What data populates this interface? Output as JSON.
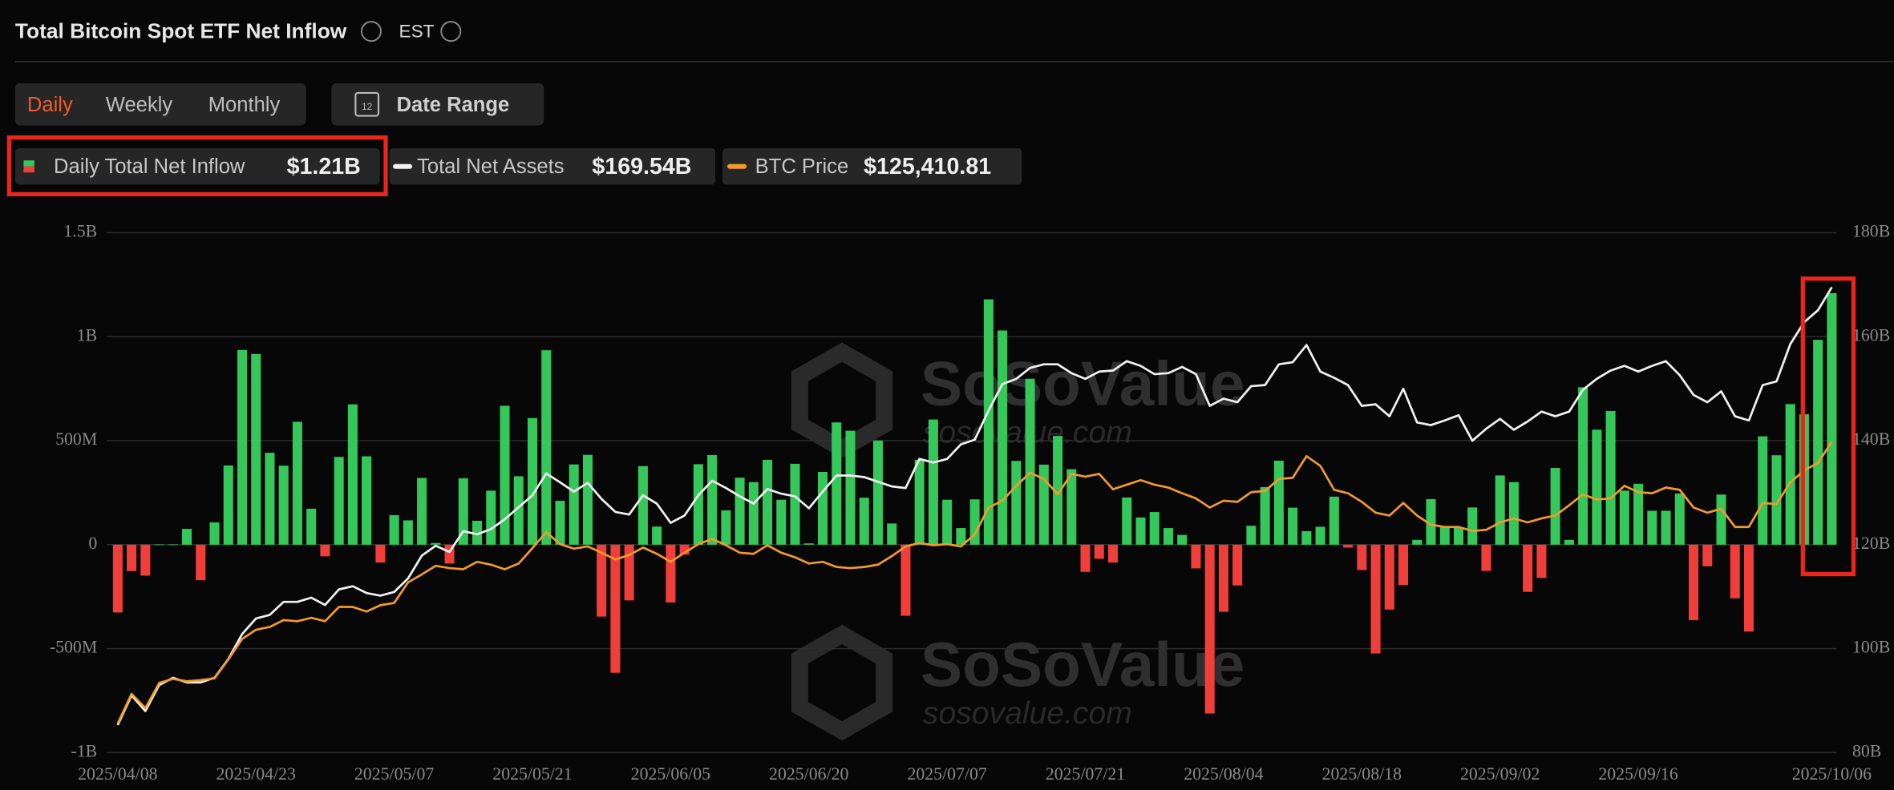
{
  "header": {
    "title": "Total Bitcoin Spot ETF Net Inflow",
    "timezone": "EST"
  },
  "controls": {
    "tabs": [
      "Daily",
      "Weekly",
      "Monthly"
    ],
    "date_range": "Date Range",
    "date_icon": "12"
  },
  "watermark": {
    "name": "SoSoValue",
    "url": "sosovalue.com"
  },
  "chart_data": {
    "type": "bar",
    "categories": [
      "2025/04/08",
      null,
      null,
      null,
      null,
      null,
      null,
      null,
      null,
      null,
      "2025/04/23",
      null,
      null,
      null,
      null,
      null,
      null,
      null,
      null,
      null,
      "2025/05/07",
      null,
      null,
      null,
      null,
      null,
      null,
      null,
      null,
      null,
      "2025/05/21",
      null,
      null,
      null,
      null,
      null,
      null,
      null,
      null,
      null,
      "2025/06/05",
      null,
      null,
      null,
      null,
      null,
      null,
      null,
      null,
      null,
      "2025/06/20",
      null,
      null,
      null,
      null,
      null,
      null,
      null,
      null,
      null,
      "2025/07/07",
      null,
      null,
      null,
      null,
      null,
      null,
      null,
      null,
      null,
      "2025/07/21",
      null,
      null,
      null,
      null,
      null,
      null,
      null,
      null,
      null,
      "2025/08/04",
      null,
      null,
      null,
      null,
      null,
      null,
      null,
      null,
      null,
      "2025/08/18",
      null,
      null,
      null,
      null,
      null,
      null,
      null,
      null,
      null,
      "2025/09/02",
      null,
      null,
      null,
      null,
      null,
      null,
      null,
      null,
      null,
      "2025/09/16",
      null,
      null,
      null,
      null,
      null,
      null,
      null,
      null,
      null,
      null,
      null,
      null,
      null,
      "2025/10/06"
    ],
    "series": [
      {
        "name": "Daily Total Net Inflow",
        "latest_label": "$1.21B",
        "type": "bar",
        "color": "#35c759",
        "negative_color": "#f03e3a",
        "values": [
          -326,
          -127,
          -149,
          1,
          1,
          76,
          -171,
          107,
          381,
          936,
          917,
          442,
          380,
          591,
          173,
          -56,
          422,
          675,
          425,
          -86,
          142,
          117,
          321,
          8,
          -91,
          319,
          115,
          260,
          668,
          329,
          609,
          935,
          211,
          386,
          432,
          -346,
          -616,
          -268,
          378,
          87,
          -278,
          -48,
          387,
          431,
          165,
          322,
          301,
          408,
          216,
          389,
          6,
          350,
          588,
          548,
          226,
          501,
          102,
          -342,
          408,
          602,
          216,
          80,
          218,
          1180,
          1030,
          403,
          798,
          385,
          523,
          363,
          -131,
          -68,
          -86,
          227,
          131,
          157,
          80,
          47,
          -114,
          -812,
          -323,
          -196,
          91,
          277,
          404,
          178,
          65,
          86,
          231,
          -14,
          -122,
          -523,
          -312,
          -194,
          23,
          219,
          88,
          81,
          179,
          -126,
          333,
          301,
          -227,
          -160,
          369,
          23,
          757,
          553,
          643,
          260,
          293,
          163,
          163,
          246,
          -363,
          -104,
          241,
          -258,
          -418,
          521,
          430,
          676,
          627,
          985,
          1210
        ]
      },
      {
        "name": "Total Net Assets",
        "latest_label": "$169.54B",
        "type": "line",
        "axis": "y2",
        "color": "#f2f2f2",
        "values": [
          85.3,
          91,
          88,
          93,
          94.4,
          93.5,
          93.5,
          94.4,
          98,
          102.8,
          105.8,
          106.5,
          109,
          109,
          109.8,
          108.4,
          111.4,
          112,
          110.7,
          110.2,
          110.9,
          113.5,
          117.9,
          119.8,
          118.6,
          122.6,
          122,
          123,
          124.9,
          127.2,
          129.5,
          133.7,
          132,
          130.2,
          131.9,
          128.8,
          126.3,
          125.8,
          129.5,
          127.9,
          124.2,
          125.6,
          129.5,
          132.3,
          130.9,
          129.3,
          127.9,
          130.7,
          129.8,
          129.3,
          127,
          130.2,
          133.3,
          133.3,
          133,
          132.1,
          131.2,
          130.9,
          136.5,
          135.8,
          136.5,
          139.3,
          140.2,
          145.8,
          150.9,
          151.9,
          154,
          154.7,
          154.7,
          153,
          151.9,
          153.3,
          153.5,
          155.3,
          154.4,
          152.8,
          153,
          154.2,
          152.8,
          146.7,
          148.1,
          147.4,
          150.5,
          150.7,
          154.7,
          155.1,
          158.4,
          153.3,
          152.1,
          150.7,
          146.7,
          147,
          144.7,
          150,
          143.5,
          143,
          143.9,
          144.9,
          140,
          142.3,
          144.2,
          142.1,
          143.7,
          145.6,
          144.7,
          145.6,
          149.8,
          151.9,
          153.5,
          154.4,
          153.3,
          154.4,
          155.3,
          152.6,
          148.8,
          147.4,
          149.5,
          144.7,
          143.9,
          150.7,
          151.4,
          158.6,
          162.8,
          165.1,
          169.54
        ]
      },
      {
        "name": "BTC Price",
        "latest_label": "$125,410.81",
        "type": "line",
        "axis": "y3",
        "color": "#f39a2c",
        "values": [
          76100,
          81300,
          78800,
          83200,
          83900,
          83500,
          83700,
          84000,
          87300,
          90900,
          92500,
          93000,
          94200,
          94000,
          94600,
          94000,
          96500,
          96500,
          95700,
          96800,
          97200,
          100800,
          102200,
          103700,
          103300,
          103100,
          104400,
          103900,
          103100,
          104100,
          106800,
          109600,
          107500,
          106700,
          107100,
          106000,
          104800,
          105600,
          106900,
          105800,
          104400,
          106000,
          107500,
          108400,
          107300,
          106000,
          105800,
          107300,
          106000,
          105200,
          104100,
          104400,
          103500,
          103300,
          103500,
          103900,
          105400,
          107100,
          107700,
          107300,
          107500,
          107100,
          109200,
          113900,
          115100,
          117700,
          120000,
          118900,
          116200,
          119800,
          119300,
          119800,
          117100,
          117900,
          118700,
          117900,
          117400,
          116400,
          115500,
          113900,
          115100,
          114900,
          116600,
          116800,
          118900,
          119100,
          122900,
          121200,
          117000,
          116400,
          114900,
          113000,
          112500,
          114700,
          112500,
          110900,
          110500,
          110500,
          109800,
          110000,
          111300,
          112000,
          111300,
          112000,
          112500,
          114300,
          116200,
          115300,
          115500,
          117700,
          116600,
          116400,
          117400,
          117000,
          113900,
          113000,
          113700,
          110500,
          110500,
          114700,
          114500,
          118300,
          120400,
          121700,
          125410.81
        ]
      }
    ],
    "ylim": [
      -1000,
      1500
    ],
    "yticks": [
      {
        "value": -1000,
        "label": "-1B"
      },
      {
        "value": -500,
        "label": "-500M"
      },
      0,
      {
        "value": 500,
        "label": "500M"
      },
      {
        "value": 1000,
        "label": "1B"
      },
      {
        "value": 1500,
        "label": "1.5B"
      }
    ],
    "y2lim": [
      80,
      180
    ],
    "y2ticks": [
      {
        "value": 80,
        "label": "80B"
      },
      {
        "value": 100,
        "label": "100B"
      },
      {
        "value": 120,
        "label": "120B"
      },
      {
        "value": 140,
        "label": "140B"
      },
      {
        "value": 160,
        "label": "160B"
      },
      {
        "value": 180,
        "label": "180B"
      }
    ],
    "y3lim": [
      71000,
      162000
    ],
    "grid": true
  }
}
